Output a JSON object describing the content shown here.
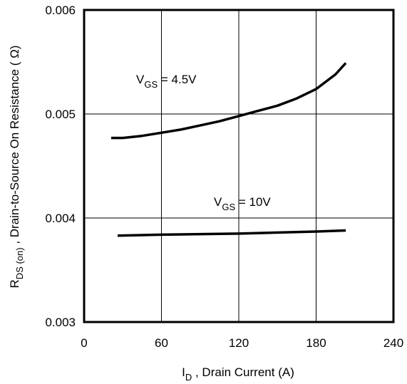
{
  "chart_data": {
    "type": "line",
    "xlabel": {
      "main": "I",
      "sub": "D",
      "rest": " , Drain Current (A)"
    },
    "ylabel": {
      "main": "R",
      "sub": "DS (on)",
      "rest": " , Drain-to-Source On Resistance ( Ω)"
    },
    "xlim": [
      0,
      240
    ],
    "ylim": [
      0.003,
      0.006
    ],
    "xticks": [
      0,
      60,
      120,
      180,
      240
    ],
    "xtick_labels": [
      "0",
      "60",
      "120",
      "180",
      "240"
    ],
    "yticks": [
      0.003,
      0.004,
      0.005,
      0.006
    ],
    "ytick_labels": [
      "0.003",
      "0.004",
      "0.005",
      "0.006"
    ],
    "grid": true,
    "series": [
      {
        "name": "VGS = 4.5V",
        "label": {
          "main": "V",
          "sub": "GS",
          "rest": " = 4.5V"
        },
        "x": [
          21,
          30,
          45,
          60,
          75,
          90,
          105,
          120,
          135,
          150,
          165,
          180,
          195,
          203
        ],
        "y": [
          0.00477,
          0.00477,
          0.00479,
          0.00482,
          0.00485,
          0.00489,
          0.00493,
          0.00498,
          0.00503,
          0.00508,
          0.00515,
          0.00524,
          0.00538,
          0.00549
        ]
      },
      {
        "name": "VGS = 10V",
        "label": {
          "main": "V",
          "sub": "GS",
          "rest": " = 10V"
        },
        "x": [
          26,
          60,
          120,
          180,
          203
        ],
        "y": [
          0.00383,
          0.00384,
          0.00385,
          0.00387,
          0.00388
        ]
      }
    ]
  }
}
